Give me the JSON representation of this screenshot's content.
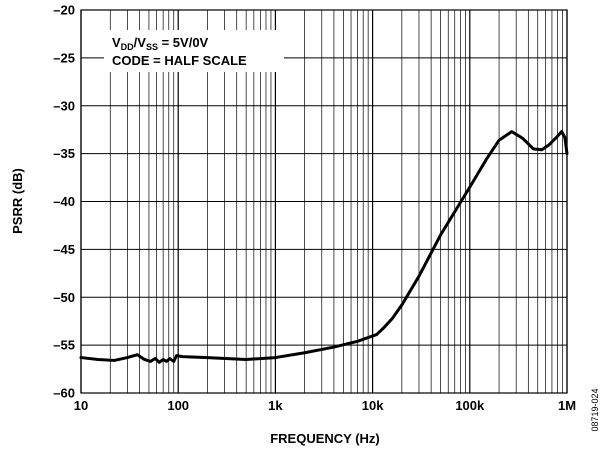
{
  "chart_data": {
    "type": "line",
    "title": "",
    "xlabel": "FREQUENCY (Hz)",
    "ylabel": "PSRR (dB)",
    "x_scale": "log",
    "xlim": [
      10,
      1000000
    ],
    "ylim": [
      -60,
      -20
    ],
    "grid": true,
    "x_ticks": [
      {
        "value": 10,
        "label": "10"
      },
      {
        "value": 100,
        "label": "100"
      },
      {
        "value": 1000,
        "label": "1k"
      },
      {
        "value": 10000,
        "label": "10k"
      },
      {
        "value": 100000,
        "label": "100k"
      },
      {
        "value": 1000000,
        "label": "1M"
      }
    ],
    "y_ticks": [
      {
        "value": -20,
        "label": "–20"
      },
      {
        "value": -25,
        "label": "–25"
      },
      {
        "value": -30,
        "label": "–30"
      },
      {
        "value": -35,
        "label": "–35"
      },
      {
        "value": -40,
        "label": "–40"
      },
      {
        "value": -45,
        "label": "–45"
      },
      {
        "value": -50,
        "label": "–50"
      },
      {
        "value": -55,
        "label": "–55"
      },
      {
        "value": -60,
        "label": "–60"
      }
    ],
    "annotation": {
      "line1": {
        "main": "V",
        "sub1": "DD",
        "mid": "/V",
        "sub2": "SS",
        "rest": " = 5V/0V"
      },
      "line2": "CODE = HALF SCALE"
    },
    "figure_id": "08719-024",
    "series": [
      {
        "color": "#000000",
        "points": [
          [
            10,
            -56.3
          ],
          [
            15,
            -56.5
          ],
          [
            22,
            -56.6
          ],
          [
            30,
            -56.3
          ],
          [
            38,
            -56.0
          ],
          [
            45,
            -56.5
          ],
          [
            52,
            -56.7
          ],
          [
            58,
            -56.4
          ],
          [
            64,
            -56.8
          ],
          [
            70,
            -56.5
          ],
          [
            76,
            -56.7
          ],
          [
            82,
            -56.4
          ],
          [
            90,
            -56.7
          ],
          [
            96,
            -56.1
          ],
          [
            110,
            -56.2
          ],
          [
            200,
            -56.3
          ],
          [
            500,
            -56.5
          ],
          [
            1000,
            -56.3
          ],
          [
            2000,
            -55.8
          ],
          [
            4000,
            -55.2
          ],
          [
            7000,
            -54.6
          ],
          [
            11000,
            -53.9
          ],
          [
            13000,
            -53.2
          ],
          [
            16000,
            -52.2
          ],
          [
            20000,
            -50.8
          ],
          [
            30000,
            -47.8
          ],
          [
            50000,
            -43.5
          ],
          [
            100000,
            -38.5
          ],
          [
            150000,
            -35.5
          ],
          [
            200000,
            -33.6
          ],
          [
            270000,
            -32.7
          ],
          [
            350000,
            -33.4
          ],
          [
            450000,
            -34.5
          ],
          [
            550000,
            -34.6
          ],
          [
            650000,
            -34.1
          ],
          [
            780000,
            -33.3
          ],
          [
            880000,
            -32.7
          ],
          [
            950000,
            -33.3
          ],
          [
            1000000,
            -35.0
          ]
        ]
      }
    ]
  }
}
